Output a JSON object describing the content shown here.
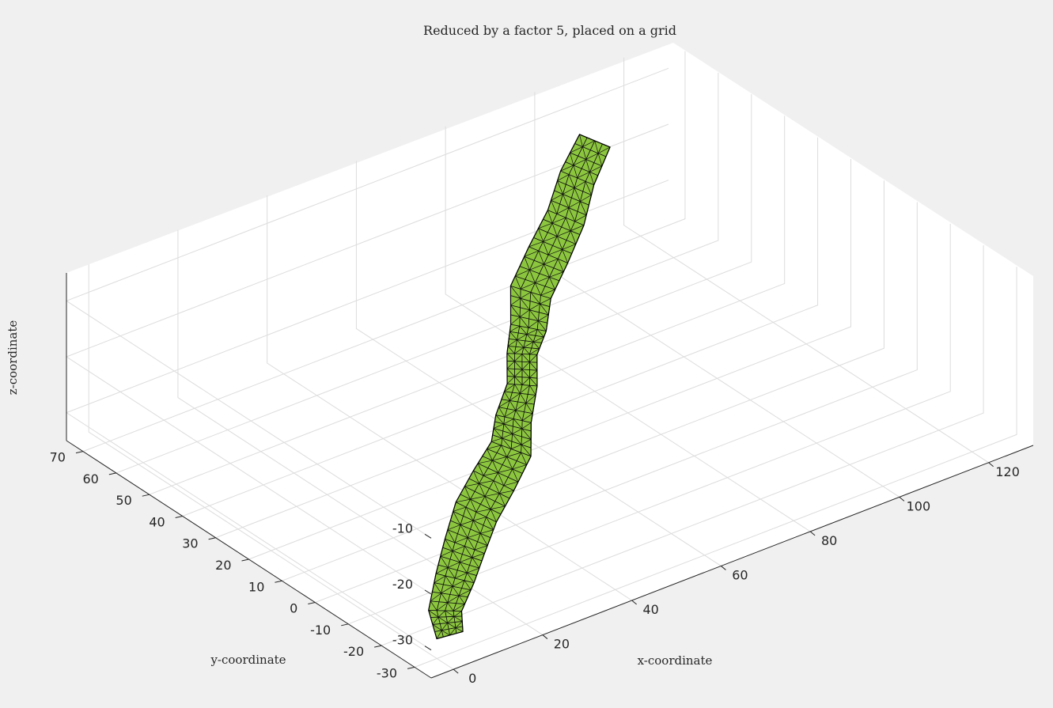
{
  "chart_data": {
    "type": "surface",
    "title": "Reduced by a factor 5, placed on a grid",
    "xlabel": "x-coordinate",
    "ylabel": "y-coordinate",
    "zlabel": "z-coordinate",
    "xlim": [
      -5,
      130
    ],
    "ylim": [
      -35,
      75
    ],
    "zlim": [
      -35,
      -5
    ],
    "xticks": [
      "0",
      "20",
      "40",
      "60",
      "80",
      "100",
      "120"
    ],
    "yticks": [
      "-30",
      "-20",
      "-10",
      "0",
      "10",
      "20",
      "30",
      "40",
      "50",
      "60",
      "70"
    ],
    "zticks": [
      "-30",
      "-20",
      "-10"
    ],
    "grid": true,
    "face_color": "#8cc63f",
    "edge_color": "#000000",
    "series": [
      {
        "name": "",
        "points": [
          {
            "x": 5,
            "y": -28,
            "z": -33
          },
          {
            "x": 8,
            "y": -22,
            "z": -32
          },
          {
            "x": 15,
            "y": -15,
            "z": -31
          },
          {
            "x": 22,
            "y": -8,
            "z": -30
          },
          {
            "x": 30,
            "y": -2,
            "z": -29
          },
          {
            "x": 38,
            "y": 4,
            "z": -28
          },
          {
            "x": 46,
            "y": 10,
            "z": -27
          },
          {
            "x": 52,
            "y": 16,
            "z": -26
          },
          {
            "x": 58,
            "y": 22,
            "z": -24
          },
          {
            "x": 62,
            "y": 28,
            "z": -22
          },
          {
            "x": 66,
            "y": 32,
            "z": -20
          },
          {
            "x": 72,
            "y": 38,
            "z": -18
          },
          {
            "x": 80,
            "y": 44,
            "z": -16
          },
          {
            "x": 88,
            "y": 50,
            "z": -14
          },
          {
            "x": 96,
            "y": 56,
            "z": -12
          },
          {
            "x": 104,
            "y": 62,
            "z": -10
          }
        ]
      }
    ]
  }
}
